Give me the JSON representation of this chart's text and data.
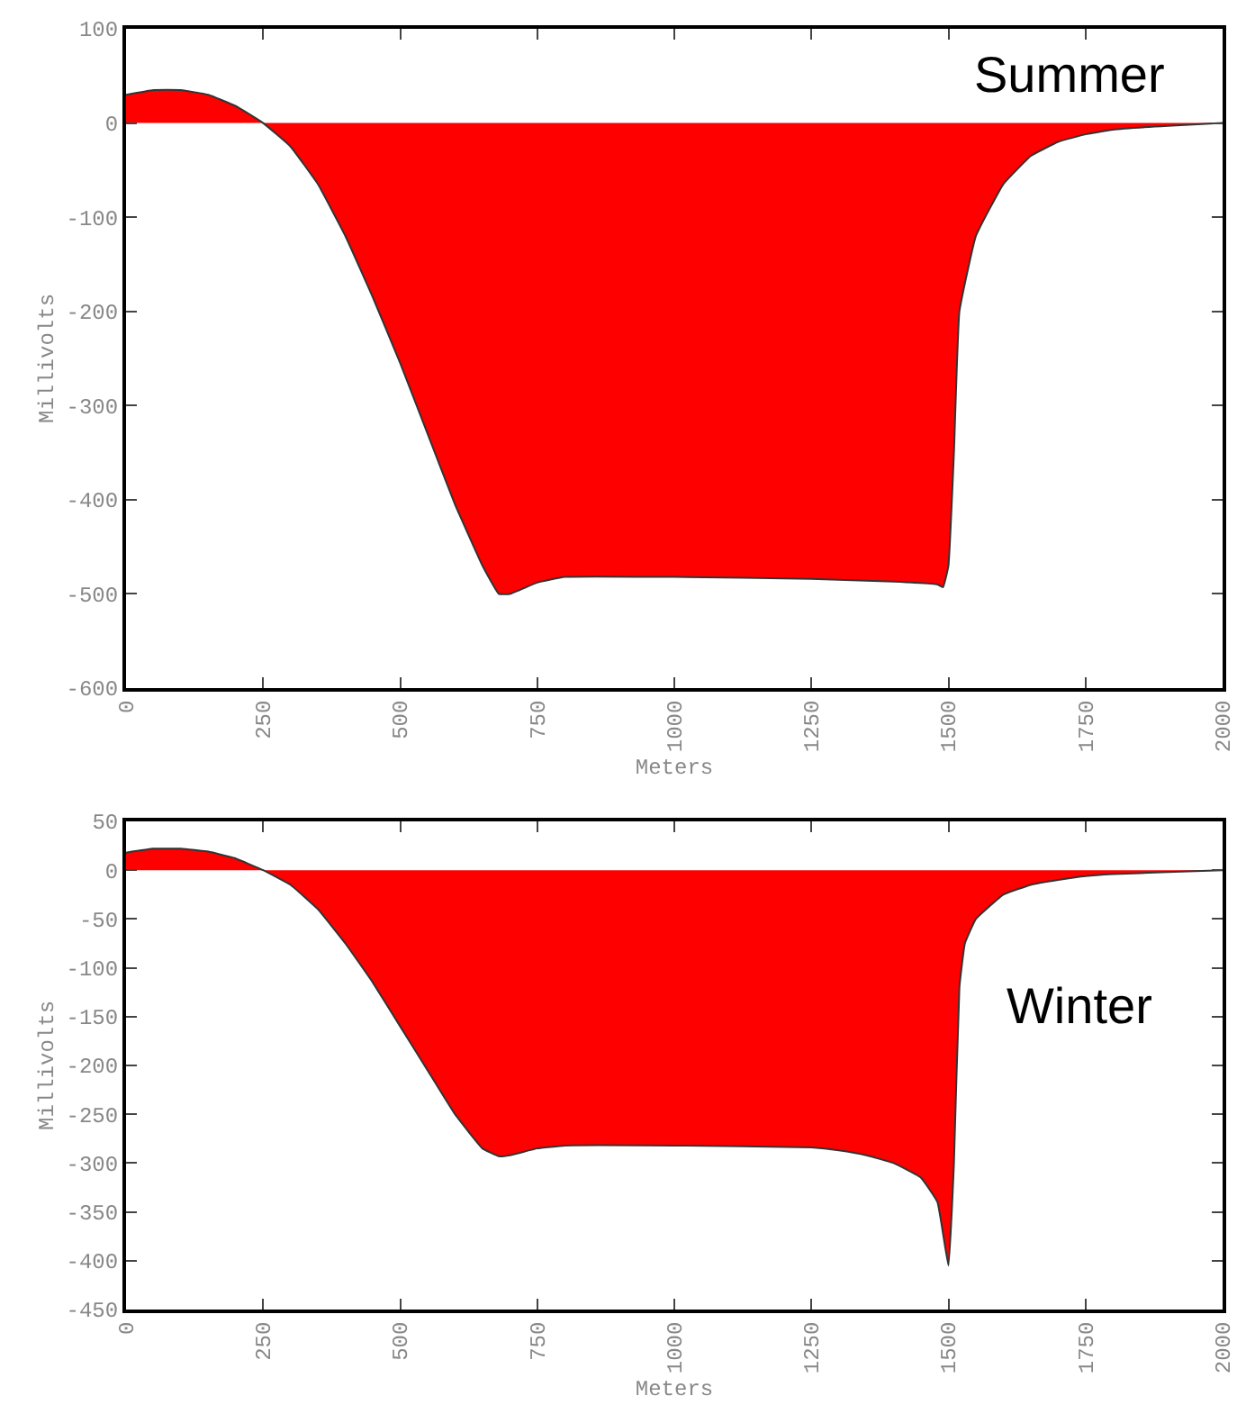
{
  "chart_data": [
    {
      "type": "area",
      "xlabel": "Meters",
      "ylabel": "Millivolts",
      "annotations": [
        "Summer"
      ],
      "x": [
        0,
        50,
        100,
        150,
        200,
        250,
        300,
        350,
        400,
        450,
        500,
        550,
        600,
        650,
        680,
        700,
        750,
        800,
        1000,
        1250,
        1400,
        1480,
        1490,
        1500,
        1510,
        1520,
        1550,
        1600,
        1650,
        1700,
        1750,
        1800,
        1900,
        2000
      ],
      "series": [
        {
          "color": "#ff0000",
          "values": [
            30,
            35,
            35,
            30,
            18,
            0,
            -25,
            -65,
            -120,
            -185,
            -255,
            -330,
            -405,
            -470,
            -500,
            -500,
            -488,
            -482,
            -482,
            -484,
            -487,
            -490,
            -493,
            -470,
            -350,
            -200,
            -120,
            -65,
            -35,
            -20,
            -12,
            -7,
            -3,
            0
          ]
        }
      ],
      "xlim": [
        0,
        2000
      ],
      "xticks": [
        0,
        250,
        500,
        750,
        1000,
        1250,
        1500,
        1750,
        2000
      ],
      "ylim": [
        -600,
        100
      ],
      "yticks": [
        -600,
        -500,
        -400,
        -300,
        -200,
        -100,
        0,
        100
      ],
      "grid": false
    },
    {
      "type": "area",
      "xlabel": "Meters",
      "ylabel": "Millivolts",
      "annotations": [
        "Winter"
      ],
      "x": [
        0,
        50,
        100,
        150,
        200,
        250,
        300,
        350,
        400,
        450,
        500,
        550,
        600,
        650,
        680,
        700,
        750,
        800,
        1000,
        1250,
        1300,
        1350,
        1400,
        1450,
        1480,
        1500,
        1510,
        1520,
        1530,
        1550,
        1600,
        1650,
        1700,
        1750,
        1800,
        1900,
        2000
      ],
      "series": [
        {
          "color": "#ff0000",
          "values": [
            18,
            22,
            22,
            19,
            12,
            0,
            -15,
            -40,
            -75,
            -115,
            -160,
            -205,
            -250,
            -285,
            -293,
            -292,
            -285,
            -282,
            -282,
            -284,
            -287,
            -292,
            -300,
            -315,
            -340,
            -405,
            -300,
            -120,
            -75,
            -50,
            -25,
            -15,
            -10,
            -6,
            -4,
            -2,
            0
          ]
        }
      ],
      "xlim": [
        0,
        2000
      ],
      "xticks": [
        0,
        250,
        500,
        750,
        1000,
        1250,
        1500,
        1750,
        2000
      ],
      "ylim": [
        -450,
        50
      ],
      "yticks": [
        -450,
        -400,
        -350,
        -300,
        -250,
        -200,
        -150,
        -100,
        -50,
        0,
        50
      ],
      "grid": false
    }
  ]
}
